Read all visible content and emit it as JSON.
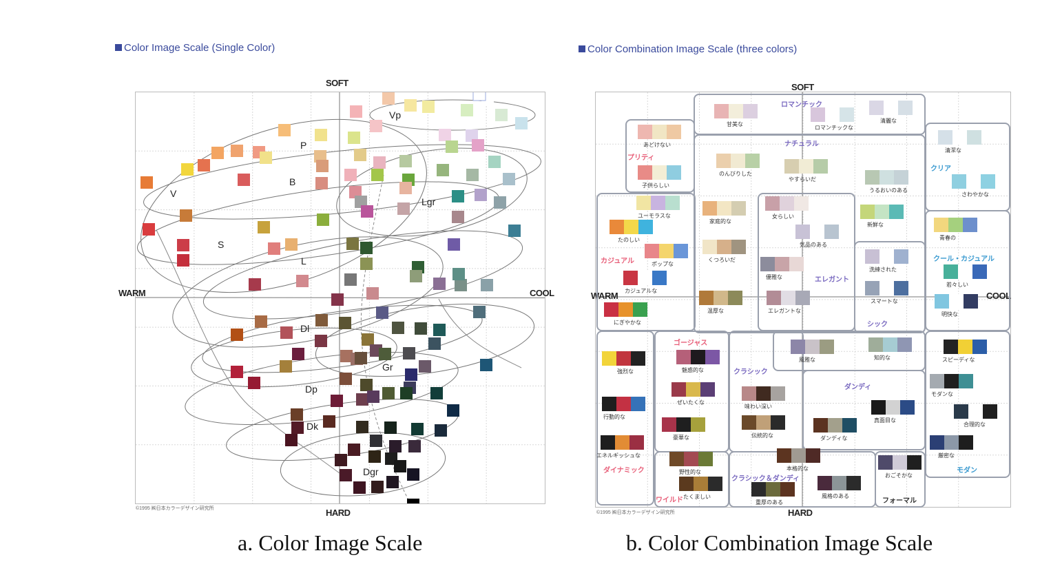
{
  "left": {
    "title": "Color Image Scale (Single Color)",
    "axes": {
      "top": "SOFT",
      "bottom": "HARD",
      "left": "WARM",
      "right": "COOL"
    },
    "zones": [
      {
        "key": "vp",
        "label": "Vp"
      },
      {
        "key": "p",
        "label": "P"
      },
      {
        "key": "b",
        "label": "B"
      },
      {
        "key": "v",
        "label": "V"
      },
      {
        "key": "lgr",
        "label": "Lgr"
      },
      {
        "key": "s",
        "label": "S"
      },
      {
        "key": "l",
        "label": "L"
      },
      {
        "key": "dl",
        "label": "Dl"
      },
      {
        "key": "gr",
        "label": "Gr"
      },
      {
        "key": "dp",
        "label": "Dp"
      },
      {
        "key": "dk",
        "label": "Dk"
      },
      {
        "key": "dgr",
        "label": "Dgr"
      }
    ],
    "copyright": "©1995 ㈱日本カラーデザイン研究所",
    "caption": "a. Color Image Scale"
  },
  "right": {
    "title": "Color Combination Image Scale (three colors)",
    "axes": {
      "top": "SOFT",
      "bottom": "HARD",
      "left": "WARM",
      "right": "COOL"
    },
    "categories": {
      "romantic": "ロマンチック",
      "pretty": "プリティ",
      "natural": "ナチュラル",
      "clear": "クリア",
      "casual": "カジュアル",
      "elegant": "エレガント",
      "cool_casual": "クール・カジュアル",
      "chic": "シック",
      "gorgeous": "ゴージャス",
      "classic": "クラシック",
      "dandy": "ダンディ",
      "dynamic": "ダイナミック",
      "wild": "ワイルド",
      "classic_dandy": "クラシック＆ダンディ",
      "formal": "フォーマル",
      "modern": "モダン"
    },
    "words": {
      "w01": "甘美な",
      "w02": "ロマンチックな",
      "w03": "清麗な",
      "w04": "あどけない",
      "w05": "子供らしい",
      "w06": "のんびりした",
      "w07": "やすらいだ",
      "w08": "うるおいのある",
      "w09": "清潔な",
      "w10": "さわやかな",
      "w11": "ユーモラスな",
      "w12": "たのしい",
      "w13": "家庭的な",
      "w14": "女らしい",
      "w15": "気品のある",
      "w16": "新鮮な",
      "w17": "青春の",
      "w18": "ポップな",
      "w19": "くつろいだ",
      "w20": "優雅な",
      "w21": "洗練された",
      "w22": "若々しい",
      "w23": "カジュアルな",
      "w24": "温厚な",
      "w25": "エレガントな",
      "w26": "スマートな",
      "w27": "明快な",
      "w28": "にぎやかな",
      "w29": "風雅な",
      "w30": "知的な",
      "w31": "強烈な",
      "w32": "魅惑的な",
      "w33": "スピーディな",
      "w34": "ぜいたくな",
      "w35": "モダンな",
      "w36": "行動的な",
      "w37": "味わい深い",
      "w38": "真面目な",
      "w39": "豪華な",
      "w40": "伝統的な",
      "w41": "ダンディな",
      "w42": "合理的な",
      "w43": "エネルギッシュな",
      "w44": "厳密な",
      "w45": "野性的な",
      "w46": "本格的な",
      "w47": "おごそかな",
      "w48": "たくましい",
      "w49": "重厚のある",
      "w50": "風格のある"
    },
    "copyright": "©1995 ㈱日本カラーデザイン研究所",
    "caption": "b. Color Combination Image Scale"
  },
  "colors": {
    "axis": "#555555",
    "grid": "#d8d8d8",
    "accent": "#3a4a9c",
    "pink": "#e8607a",
    "blue": "#3a9ad0",
    "purple": "#7a6ac0"
  }
}
